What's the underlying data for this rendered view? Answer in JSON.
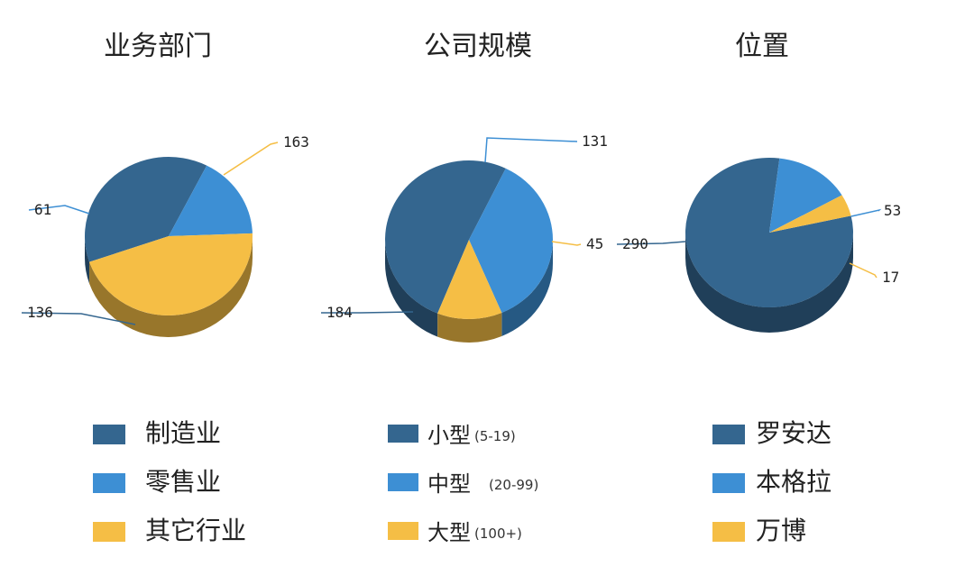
{
  "chart_data": [
    {
      "type": "pie",
      "title": "业务部门",
      "slices": [
        {
          "label": "制造业",
          "value": 136,
          "color": "#34668f"
        },
        {
          "label": "零售业",
          "value": 61,
          "color": "#3d8fd4"
        },
        {
          "label": "其它行业",
          "value": 163,
          "color": "#f5be45"
        }
      ]
    },
    {
      "type": "pie",
      "title": "公司规模",
      "slices": [
        {
          "label": "小型",
          "note": "(5-19)",
          "value": 184,
          "color": "#34668f"
        },
        {
          "label": "中型",
          "note": "(20-99)",
          "value": 131,
          "color": "#3d8fd4"
        },
        {
          "label": "大型",
          "note": "(100+)",
          "value": 45,
          "color": "#f5be45"
        }
      ]
    },
    {
      "type": "pie",
      "title": "位置",
      "slices": [
        {
          "label": "罗安达",
          "value": 290,
          "color": "#34668f"
        },
        {
          "label": "本格拉",
          "value": 53,
          "color": "#3d8fd4"
        },
        {
          "label": "万博",
          "value": 17,
          "color": "#f5be45"
        }
      ]
    }
  ]
}
